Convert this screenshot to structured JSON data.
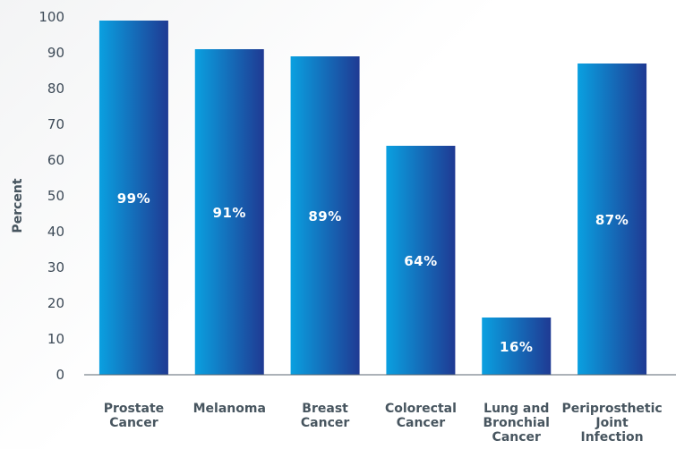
{
  "chart_data": {
    "type": "bar",
    "categories": [
      [
        "Prostate",
        "Cancer"
      ],
      [
        "Melanoma"
      ],
      [
        "Breast",
        "Cancer"
      ],
      [
        "Colorectal",
        "Cancer"
      ],
      [
        "Lung and",
        "Bronchial",
        "Cancer"
      ],
      [
        "Periprosthetic",
        "Joint",
        "Infection"
      ]
    ],
    "values": [
      99,
      91,
      89,
      64,
      16,
      87
    ],
    "value_labels": [
      "99%",
      "91%",
      "89%",
      "64%",
      "16%",
      "87%"
    ],
    "xlabel": "",
    "ylabel": "Percent",
    "ylim": [
      0,
      100
    ],
    "yticks": [
      0,
      10,
      20,
      30,
      40,
      50,
      60,
      70,
      80,
      90,
      100
    ],
    "grid": false,
    "legend": "none",
    "colors": {
      "bar_top": "#0aa0e0",
      "bar_bottom": "#1f3a93",
      "axis": "#5a6670"
    }
  }
}
